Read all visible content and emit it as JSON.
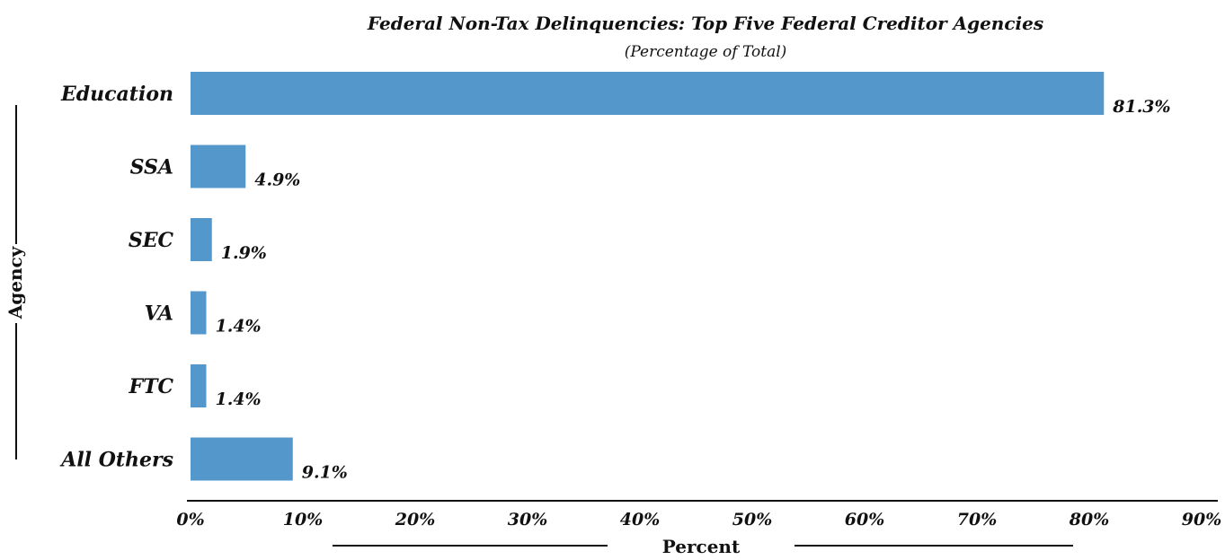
{
  "chart_data": {
    "type": "bar",
    "orientation": "horizontal",
    "title": "Federal Non-Tax Delinquencies: Top Five Federal Creditor Agencies",
    "subtitle": "(Percentage of Total)",
    "categories": [
      "Education",
      "SSA",
      "SEC",
      "VA",
      "FTC",
      "All Others"
    ],
    "values": [
      81.3,
      4.9,
      1.9,
      1.4,
      1.4,
      9.1
    ],
    "value_labels": [
      "81.3%",
      "4.9%",
      "1.9%",
      "1.4%",
      "1.4%",
      "9.1%"
    ],
    "xlabel": "Percent",
    "ylabel": "Agency",
    "xlim": [
      0,
      90
    ],
    "x_ticks": [
      "0%",
      "10%",
      "20%",
      "30%",
      "40%",
      "50%",
      "60%",
      "70%",
      "80%",
      "90%"
    ],
    "bar_color": "#5497cb",
    "grid": false,
    "legend": "none"
  }
}
